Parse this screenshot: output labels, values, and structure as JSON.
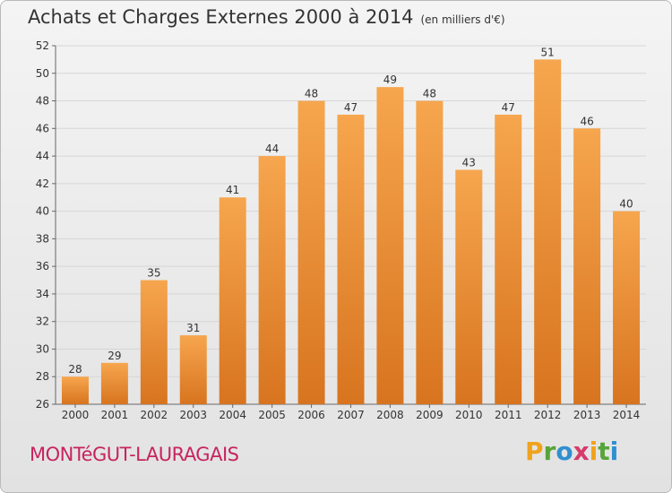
{
  "title": "Achats et Charges Externes 2000 à 2014",
  "subtitle": "(en milliers d'€)",
  "commune": "MONTéGUT-LAURAGAIS",
  "logo": {
    "letters": [
      "P",
      "r",
      "o",
      "x",
      "i",
      "t",
      "i"
    ],
    "colors": [
      "#f0a31c",
      "#57a53a",
      "#2f8fd0",
      "#d63b6b",
      "#f0a31c",
      "#57a53a",
      "#2f8fd0"
    ]
  },
  "colors": {
    "bar_top": "#f6a64e",
    "bar_bottom": "#d8741f",
    "grid": "#d6d6d6"
  },
  "chart_data": {
    "type": "bar",
    "title": "Achats et Charges Externes 2000 à 2014",
    "subtitle": "(en milliers d'€)",
    "categories": [
      "2000",
      "2001",
      "2002",
      "2003",
      "2004",
      "2005",
      "2006",
      "2007",
      "2008",
      "2009",
      "2010",
      "2011",
      "2012",
      "2013",
      "2014"
    ],
    "values": [
      28,
      29,
      35,
      31,
      41,
      44,
      48,
      47,
      49,
      48,
      43,
      47,
      51,
      46,
      40
    ],
    "ylim": [
      26,
      52
    ],
    "yticks": [
      26,
      28,
      30,
      32,
      34,
      36,
      38,
      40,
      42,
      44,
      46,
      48,
      50,
      52
    ],
    "grid": true,
    "xlabel": "",
    "ylabel": ""
  }
}
